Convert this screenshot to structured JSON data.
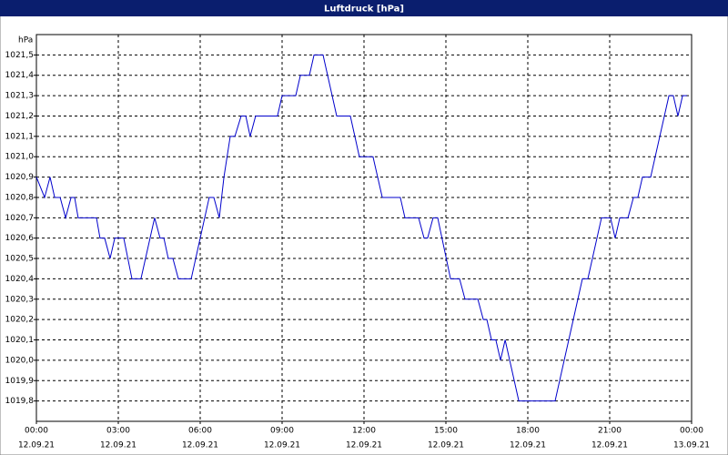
{
  "chart_data": {
    "type": "line",
    "title": "Luftdruck [hPa]",
    "y_unit": "hPa",
    "color": "#0000cc",
    "grid": true,
    "xlim": [
      0,
      24
    ],
    "ylim": [
      1019.7,
      1021.6
    ],
    "xticks": [
      {
        "value": 0,
        "label": "00:00",
        "date": "12.09.21"
      },
      {
        "value": 3,
        "label": "03:00",
        "date": "12.09.21"
      },
      {
        "value": 6,
        "label": "06:00",
        "date": "12.09.21"
      },
      {
        "value": 9,
        "label": "09:00",
        "date": "12.09.21"
      },
      {
        "value": 12,
        "label": "12:00",
        "date": "12.09.21"
      },
      {
        "value": 15,
        "label": "15:00",
        "date": "12.09.21"
      },
      {
        "value": 18,
        "label": "18:00",
        "date": "12.09.21"
      },
      {
        "value": 21,
        "label": "21:00",
        "date": "12.09.21"
      },
      {
        "value": 24,
        "label": "00:00",
        "date": "13.09.21"
      }
    ],
    "yticks": [
      {
        "value": 1019.8,
        "label": "1019,8"
      },
      {
        "value": 1019.9,
        "label": "1019,9"
      },
      {
        "value": 1020.0,
        "label": "1020,0"
      },
      {
        "value": 1020.1,
        "label": "1020,1"
      },
      {
        "value": 1020.2,
        "label": "1020,2"
      },
      {
        "value": 1020.3,
        "label": "1020,3"
      },
      {
        "value": 1020.4,
        "label": "1020,4"
      },
      {
        "value": 1020.5,
        "label": "1020,5"
      },
      {
        "value": 1020.6,
        "label": "1020,6"
      },
      {
        "value": 1020.7,
        "label": "1020,7"
      },
      {
        "value": 1020.8,
        "label": "1020,8"
      },
      {
        "value": 1020.9,
        "label": "1020,9"
      },
      {
        "value": 1021.0,
        "label": "1021,0"
      },
      {
        "value": 1021.1,
        "label": "1021,1"
      },
      {
        "value": 1021.2,
        "label": "1021,2"
      },
      {
        "value": 1021.3,
        "label": "1021,3"
      },
      {
        "value": 1021.4,
        "label": "1021,4"
      },
      {
        "value": 1021.5,
        "label": "1021,5"
      }
    ],
    "x": [
      0,
      0.3,
      0.5,
      0.67,
      0.87,
      1.07,
      1.27,
      1.4,
      1.53,
      2.2,
      2.33,
      2.5,
      2.7,
      2.87,
      3.2,
      3.5,
      3.83,
      4.33,
      4.53,
      4.67,
      4.83,
      5,
      5.2,
      5.67,
      6.33,
      6.5,
      6.7,
      6.87,
      7.1,
      7.27,
      7.5,
      7.67,
      7.83,
      8.03,
      8.83,
      9,
      9.5,
      9.67,
      10,
      10.17,
      10.5,
      11,
      11.5,
      11.83,
      12.33,
      12.67,
      13.33,
      13.5,
      14,
      14.2,
      14.33,
      14.53,
      14.7,
      15.17,
      15.5,
      15.7,
      16.17,
      16.37,
      16.5,
      16.67,
      16.83,
      17,
      17.17,
      17.67,
      19,
      20,
      20.2,
      20.7,
      21.03,
      21.2,
      21.37,
      21.67,
      21.87,
      22.03,
      22.2,
      22.5,
      23.17,
      23.33,
      23.5,
      23.67,
      23.83
    ],
    "values": [
      1020.9,
      1020.8,
      1020.9,
      1020.8,
      1020.8,
      1020.7,
      1020.8,
      1020.8,
      1020.7,
      1020.7,
      1020.6,
      1020.6,
      1020.5,
      1020.6,
      1020.6,
      1020.4,
      1020.4,
      1020.7,
      1020.6,
      1020.6,
      1020.5,
      1020.5,
      1020.4,
      1020.4,
      1020.8,
      1020.8,
      1020.7,
      1020.9,
      1021.1,
      1021.1,
      1021.2,
      1021.2,
      1021.1,
      1021.2,
      1021.2,
      1021.3,
      1021.3,
      1021.4,
      1021.4,
      1021.5,
      1021.5,
      1021.2,
      1021.2,
      1021.0,
      1021.0,
      1020.8,
      1020.8,
      1020.7,
      1020.7,
      1020.6,
      1020.6,
      1020.7,
      1020.7,
      1020.4,
      1020.4,
      1020.3,
      1020.3,
      1020.2,
      1020.2,
      1020.1,
      1020.1,
      1020.0,
      1020.1,
      1019.8,
      1019.8,
      1020.4,
      1020.4,
      1020.7,
      1020.7,
      1020.6,
      1020.7,
      1020.7,
      1020.8,
      1020.8,
      1020.9,
      1020.9,
      1021.3,
      1021.3,
      1021.2,
      1021.3,
      1021.3
    ]
  }
}
